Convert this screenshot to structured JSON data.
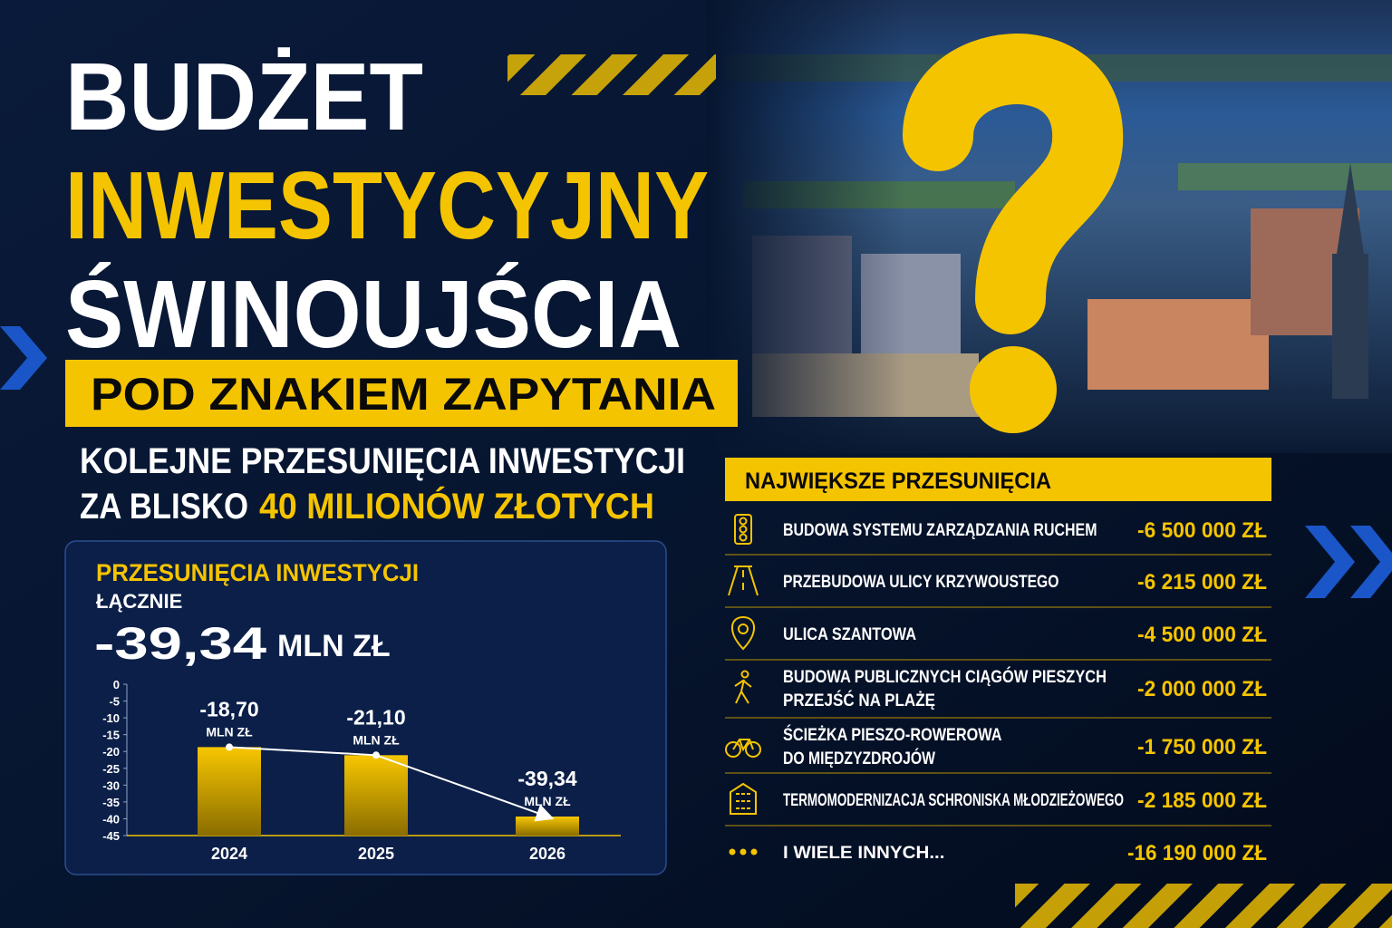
{
  "header": {
    "title_lines": [
      "BUDŻET",
      "INWESTYCYJNY",
      "ŚWINOUJŚCIA"
    ],
    "banner": "POD ZNAKIEM ZAPYTANIA",
    "subtitle_line1": "KOLEJNE PRZESUNIĘCIA INWESTYCJI",
    "subtitle_line2": "ZA BLISKO",
    "subtitle_highlight": "40 MILIONÓW ZŁOTYCH"
  },
  "summary": {
    "title": "PRZESUNIĘCIA INWESTYCJI",
    "label": "ŁĄCZNIE",
    "total": "-39,34",
    "unit": "MLN ZŁ"
  },
  "chart_data": {
    "type": "bar",
    "categories": [
      "2024",
      "2025",
      "2026"
    ],
    "values": [
      -18.7,
      -21.1,
      -39.34
    ],
    "value_labels": [
      "-18,70",
      "-21,10",
      "-39,34"
    ],
    "value_unit": "MLN ZŁ",
    "color": "#f5c400",
    "ylim": [
      -45,
      0
    ],
    "yticks": [
      0,
      -5,
      -10,
      -15,
      -20,
      -25,
      -30,
      -35,
      -40,
      -45
    ],
    "trend_line": true
  },
  "list": {
    "title": "NAJWIĘKSZE PRZESUNIĘCIA",
    "items": [
      {
        "label": [
          "BUDOWA SYSTEMU ZARZĄDZANIA RUCHEM"
        ],
        "amount": "-6 500 000 ZŁ"
      },
      {
        "label": [
          "PRZEBUDOWA ULICY KRZYWOUSTEGO"
        ],
        "amount": "-6 215 000 ZŁ"
      },
      {
        "label": [
          "ULICA SZANTOWA"
        ],
        "amount": "-4 500 000 ZŁ"
      },
      {
        "label": [
          "BUDOWA PUBLICZNYCH CIĄGÓW PIESZYCH",
          "PRZEJŚĆ NA PLAŻĘ"
        ],
        "amount": "-2 000 000 ZŁ"
      },
      {
        "label": [
          "ŚCIEŻKA PIESZO-ROWEROWA",
          "DO MIĘDZYZDROJÓW"
        ],
        "amount": "-1 750 000 ZŁ"
      },
      {
        "label": [
          "TERMOMODERNIZACJA SCHRONISKA MŁODZIEŻOWEGO"
        ],
        "amount": "-2 185 000 ZŁ"
      },
      {
        "label": [
          "I WIELE INNYCH..."
        ],
        "amount": "-16 190 000 ZŁ"
      }
    ]
  }
}
